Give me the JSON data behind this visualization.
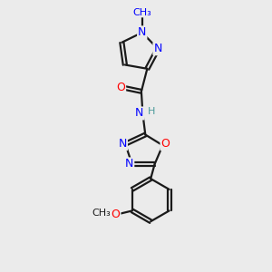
{
  "background_color": "#ebebeb",
  "bond_color": "#1a1a1a",
  "bond_width": 1.6,
  "atom_colors": {
    "N": "#0000ff",
    "O": "#ff0000",
    "C": "#1a1a1a",
    "H": "#4a9a9a"
  },
  "font_size": 9,
  "fig_size": [
    3.0,
    3.0
  ],
  "dpi": 100
}
